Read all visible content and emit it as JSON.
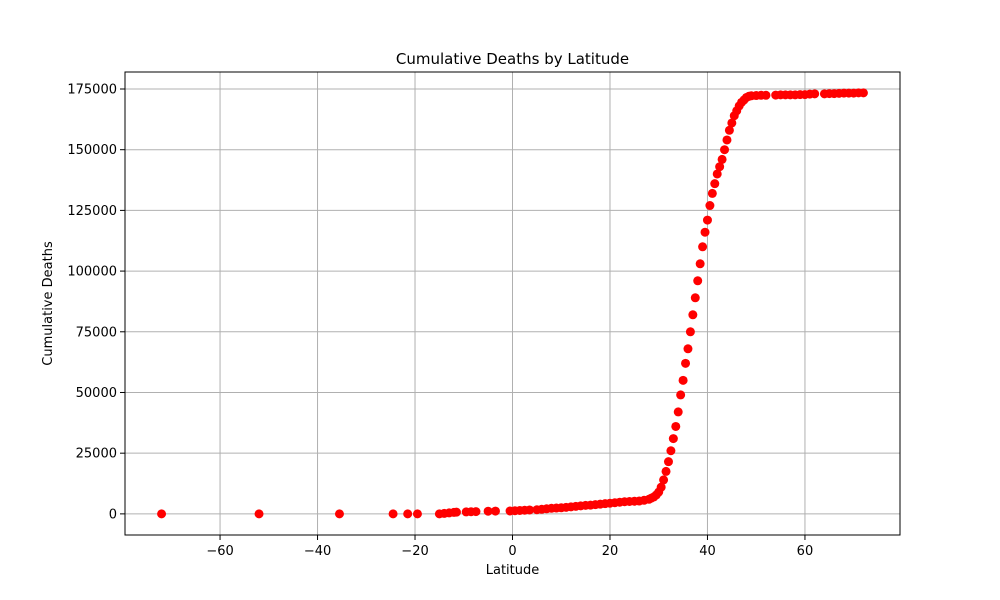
{
  "chart_data": {
    "type": "scatter",
    "title": "Cumulative Deaths by Latitude",
    "xlabel": "Latitude",
    "ylabel": "Cumulative Deaths",
    "xlim": [
      -79.5,
      79.5
    ],
    "ylim": [
      -8700,
      182000
    ],
    "grid": true,
    "marker_color": "#ff0000",
    "x_ticks": [
      -60,
      -40,
      -20,
      0,
      20,
      40,
      60
    ],
    "x_tick_labels": [
      "−60",
      "−40",
      "−20",
      "0",
      "20",
      "40",
      "60"
    ],
    "y_ticks": [
      0,
      25000,
      50000,
      75000,
      100000,
      125000,
      150000,
      175000
    ],
    "y_tick_labels": [
      "0",
      "25000",
      "50000",
      "75000",
      "100000",
      "125000",
      "150000",
      "175000"
    ],
    "points": [
      [
        -72,
        0
      ],
      [
        -52,
        0
      ],
      [
        -35.5,
        0
      ],
      [
        -24.5,
        0
      ],
      [
        -21.5,
        0
      ],
      [
        -19.5,
        0
      ],
      [
        -15,
        0
      ],
      [
        -14,
        200
      ],
      [
        -13,
        400
      ],
      [
        -12,
        600
      ],
      [
        -11.5,
        700
      ],
      [
        -9.5,
        800
      ],
      [
        -8.5,
        900
      ],
      [
        -7.5,
        950
      ],
      [
        -5,
        1100
      ],
      [
        -3.5,
        1150
      ],
      [
        -0.5,
        1200
      ],
      [
        0.5,
        1300
      ],
      [
        1.5,
        1400
      ],
      [
        2.5,
        1500
      ],
      [
        3.5,
        1600
      ],
      [
        5,
        1700
      ],
      [
        6,
        1900
      ],
      [
        7,
        2100
      ],
      [
        8,
        2300
      ],
      [
        9,
        2400
      ],
      [
        10,
        2500
      ],
      [
        11,
        2700
      ],
      [
        12,
        2900
      ],
      [
        13,
        3100
      ],
      [
        14,
        3300
      ],
      [
        15,
        3500
      ],
      [
        16,
        3600
      ],
      [
        17,
        3800
      ],
      [
        18,
        4000
      ],
      [
        19,
        4200
      ],
      [
        20,
        4400
      ],
      [
        21,
        4600
      ],
      [
        22,
        4800
      ],
      [
        23,
        5000
      ],
      [
        24,
        5100
      ],
      [
        25,
        5200
      ],
      [
        26,
        5300
      ],
      [
        27,
        5600
      ],
      [
        28,
        6000
      ],
      [
        28.5,
        6500
      ],
      [
        29,
        7000
      ],
      [
        29.5,
        7800
      ],
      [
        30,
        9000
      ],
      [
        30.5,
        11000
      ],
      [
        31,
        14000
      ],
      [
        31.5,
        17500
      ],
      [
        32,
        21500
      ],
      [
        32.5,
        26000
      ],
      [
        33,
        31000
      ],
      [
        33.5,
        36000
      ],
      [
        34,
        42000
      ],
      [
        34.5,
        49000
      ],
      [
        35,
        55000
      ],
      [
        35.5,
        62000
      ],
      [
        36,
        68000
      ],
      [
        36.5,
        75000
      ],
      [
        37,
        82000
      ],
      [
        37.5,
        89000
      ],
      [
        38,
        96000
      ],
      [
        38.5,
        103000
      ],
      [
        39,
        110000
      ],
      [
        39.5,
        116000
      ],
      [
        40,
        121000
      ],
      [
        40.5,
        127000
      ],
      [
        41,
        132000
      ],
      [
        41.5,
        136000
      ],
      [
        42,
        140000
      ],
      [
        42.5,
        143000
      ],
      [
        43,
        146000
      ],
      [
        43.5,
        150000
      ],
      [
        44,
        154000
      ],
      [
        44.5,
        158000
      ],
      [
        45,
        161000
      ],
      [
        45.5,
        164000
      ],
      [
        46,
        166000
      ],
      [
        46.5,
        168000
      ],
      [
        47,
        169500
      ],
      [
        47.5,
        170500
      ],
      [
        48,
        171500
      ],
      [
        48.5,
        172000
      ],
      [
        49,
        172200
      ],
      [
        50,
        172300
      ],
      [
        51,
        172400
      ],
      [
        52,
        172400
      ],
      [
        54,
        172500
      ],
      [
        55,
        172600
      ],
      [
        56,
        172600
      ],
      [
        57,
        172600
      ],
      [
        58,
        172600
      ],
      [
        59,
        172700
      ],
      [
        60,
        172700
      ],
      [
        61,
        172900
      ],
      [
        62,
        173000
      ],
      [
        64,
        173000
      ],
      [
        65,
        173100
      ],
      [
        66,
        173100
      ],
      [
        67,
        173200
      ],
      [
        68,
        173300
      ],
      [
        69,
        173300
      ],
      [
        70,
        173300
      ],
      [
        71,
        173400
      ],
      [
        72,
        173400
      ]
    ]
  }
}
